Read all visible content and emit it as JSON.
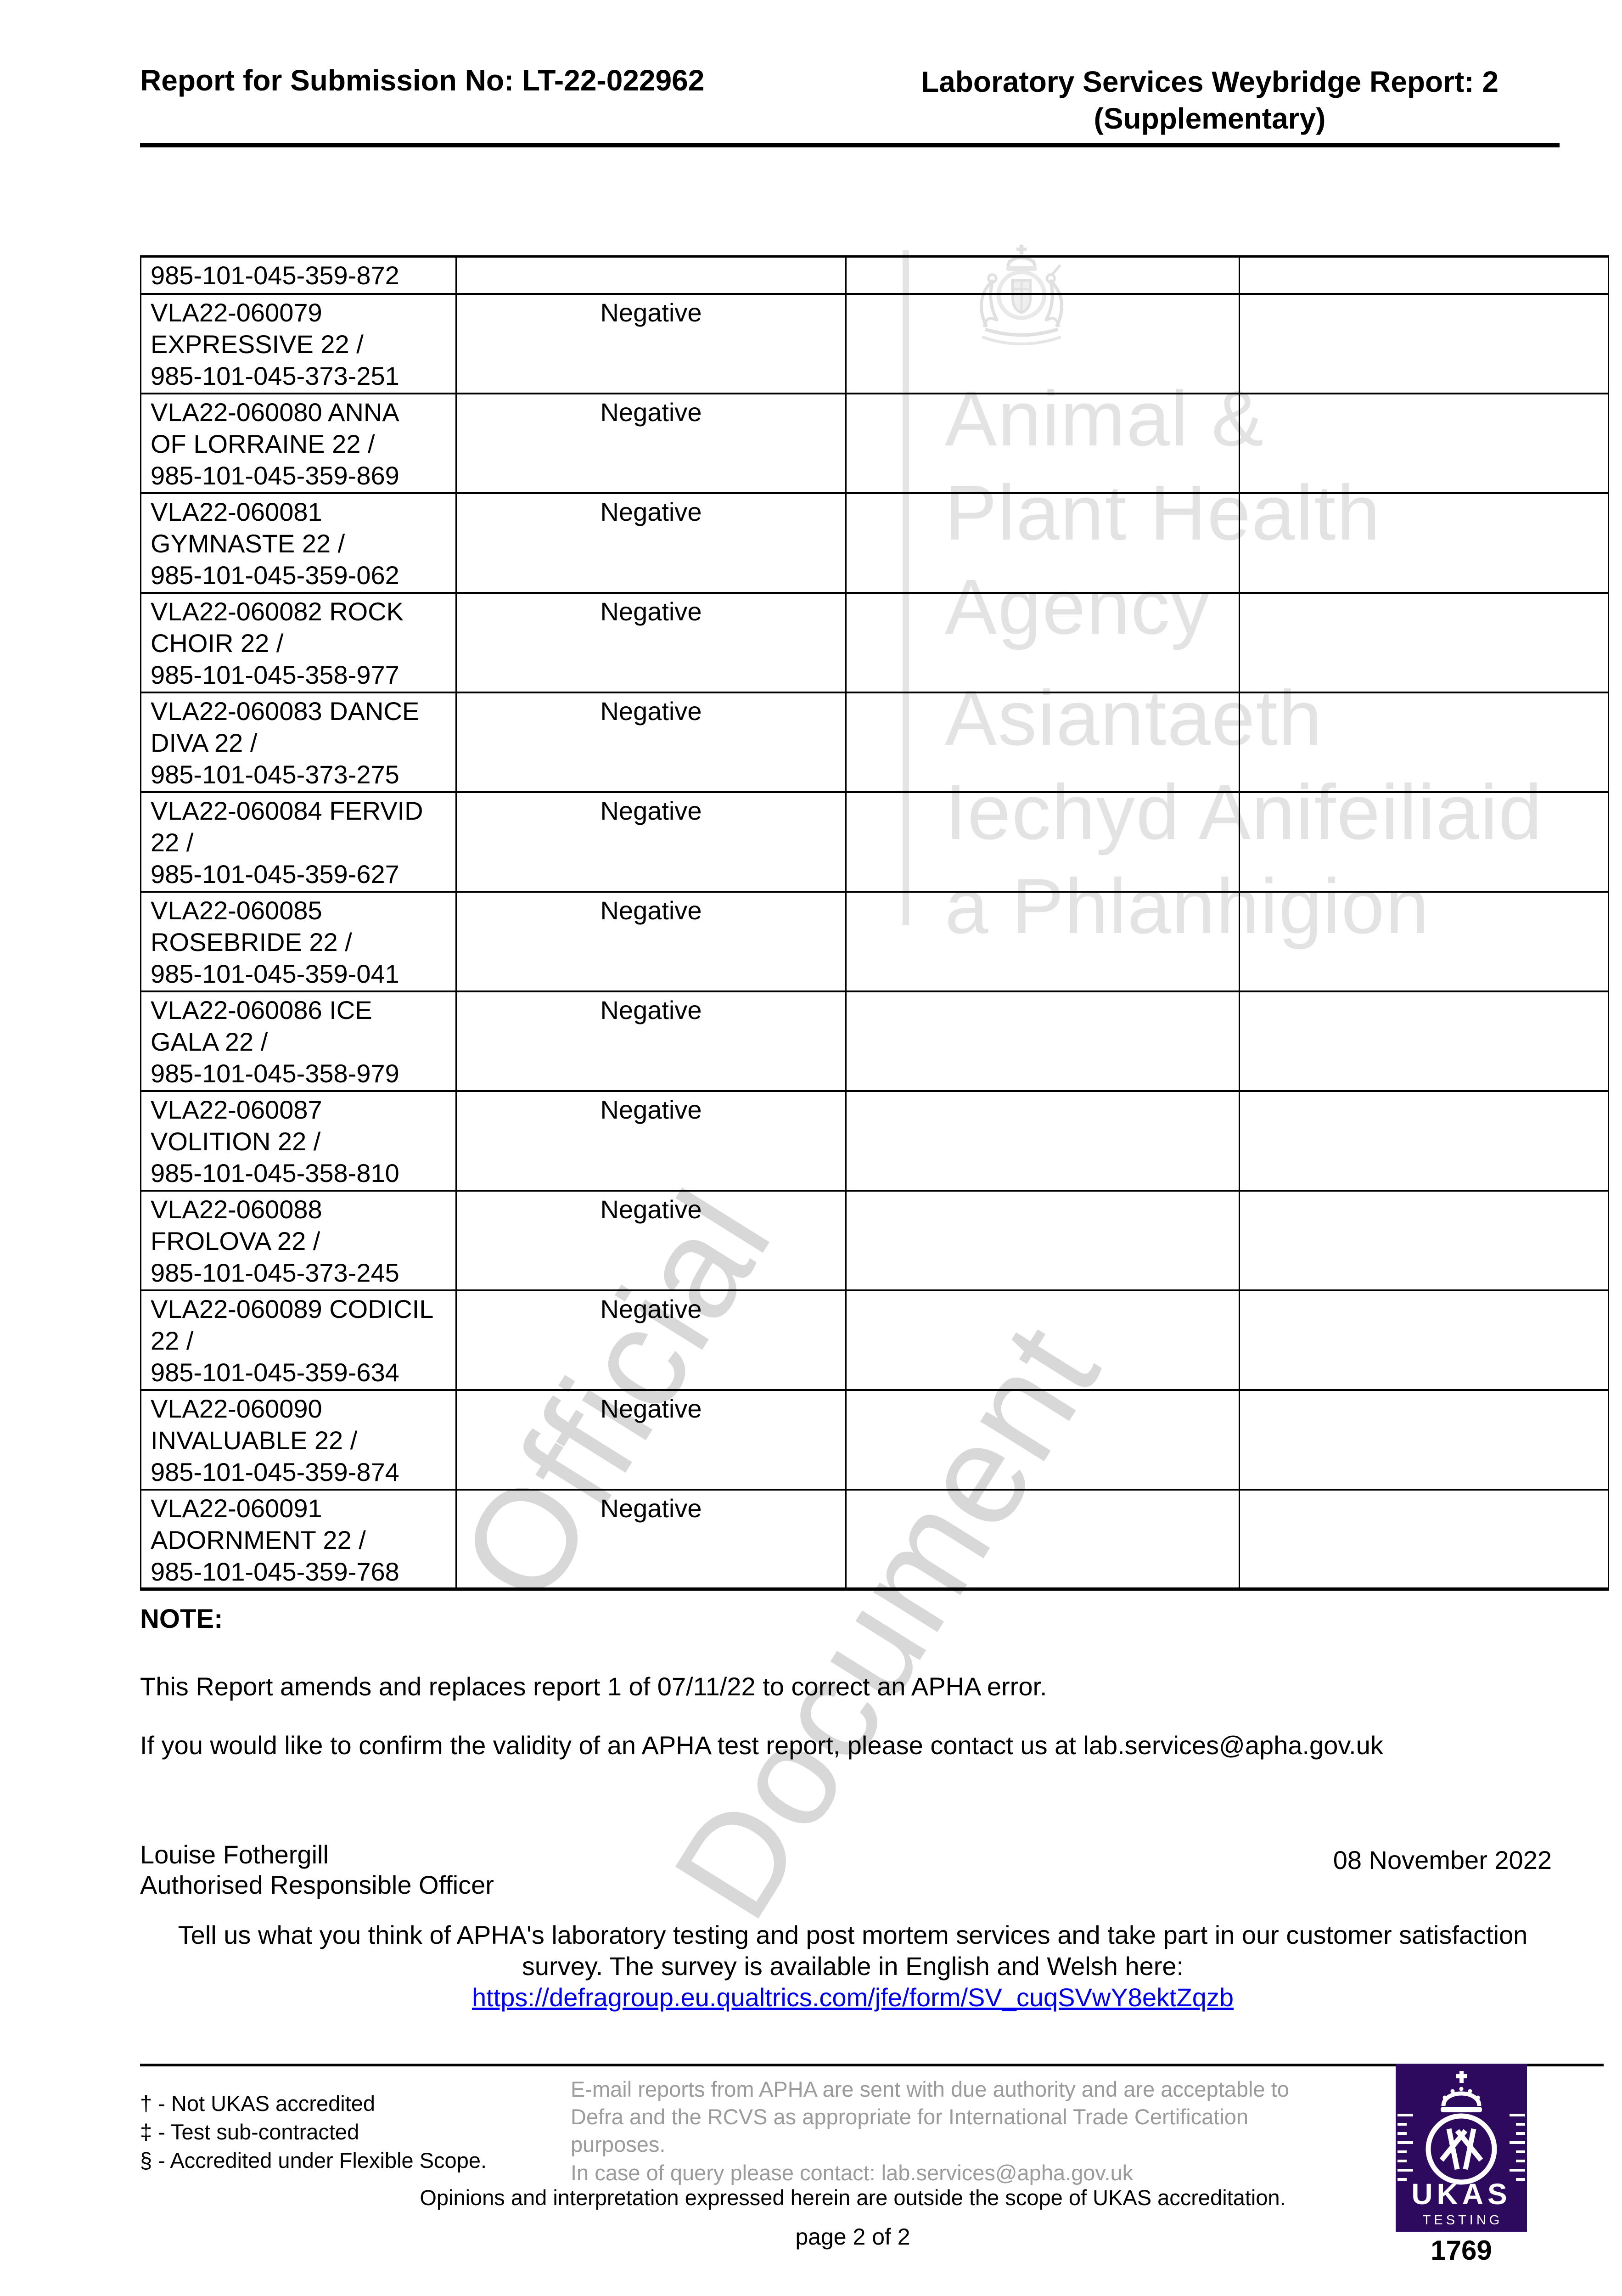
{
  "header": {
    "left_title": "Report for Submission No: LT-22-022962",
    "right_title_line1": "Laboratory Services Weybridge Report: 2",
    "right_title_line2": "(Supplementary)"
  },
  "watermark": {
    "crest": "royal-coat-of-arms",
    "org_en": [
      "Animal &",
      "Plant Health",
      "Agency"
    ],
    "org_cy": [
      "Asiantaeth",
      "Iechyd Anifeiliaid",
      "a Phlanhigion"
    ],
    "diagonal": [
      "Official",
      "Document"
    ]
  },
  "table": {
    "rows": [
      {
        "sample_lines": [
          "985-101-045-359-872"
        ],
        "result": ""
      },
      {
        "sample_lines": [
          "VLA22-060079",
          "EXPRESSIVE 22 /",
          "985-101-045-373-251"
        ],
        "result": "Negative"
      },
      {
        "sample_lines": [
          "VLA22-060080 ANNA",
          "OF LORRAINE 22 /",
          "985-101-045-359-869"
        ],
        "result": "Negative"
      },
      {
        "sample_lines": [
          "VLA22-060081",
          "GYMNASTE 22 /",
          "985-101-045-359-062"
        ],
        "result": "Negative"
      },
      {
        "sample_lines": [
          "VLA22-060082 ROCK",
          "CHOIR 22 /",
          "985-101-045-358-977"
        ],
        "result": "Negative"
      },
      {
        "sample_lines": [
          "VLA22-060083 DANCE",
          "DIVA 22 /",
          "985-101-045-373-275"
        ],
        "result": "Negative"
      },
      {
        "sample_lines": [
          "VLA22-060084 FERVID",
          "22 /",
          "985-101-045-359-627"
        ],
        "result": "Negative"
      },
      {
        "sample_lines": [
          "VLA22-060085",
          "ROSEBRIDE 22 /",
          "985-101-045-359-041"
        ],
        "result": "Negative"
      },
      {
        "sample_lines": [
          "VLA22-060086 ICE",
          "GALA 22 /",
          "985-101-045-358-979"
        ],
        "result": "Negative"
      },
      {
        "sample_lines": [
          "VLA22-060087",
          "VOLITION 22 /",
          "985-101-045-358-810"
        ],
        "result": "Negative"
      },
      {
        "sample_lines": [
          "VLA22-060088",
          "FROLOVA 22 /",
          "985-101-045-373-245"
        ],
        "result": "Negative"
      },
      {
        "sample_lines": [
          "VLA22-060089 CODICIL",
          "22 /",
          "985-101-045-359-634"
        ],
        "result": "Negative"
      },
      {
        "sample_lines": [
          "VLA22-060090",
          "INVALUABLE 22 /",
          "985-101-045-359-874"
        ],
        "result": "Negative"
      },
      {
        "sample_lines": [
          "VLA22-060091",
          "ADORNMENT 22 /",
          "985-101-045-359-768"
        ],
        "result": "Negative"
      }
    ]
  },
  "note": {
    "heading": "NOTE:",
    "paragraph1": "This Report amends and replaces report 1 of 07/11/22 to correct an APHA error.",
    "paragraph2": "If you would like to confirm the validity of an APHA test report, please contact us at lab.services@apha.gov.uk"
  },
  "signature": {
    "name": "Louise Fothergill",
    "role": "Authorised Responsible Officer",
    "date": "08 November 2022"
  },
  "survey": {
    "line1": "Tell us what you think of APHA's laboratory testing and post mortem services and take part in our customer satisfaction",
    "line2": "survey. The survey is available in English and Welsh here:",
    "link": "https://defragroup.eu.qualtrics.com/jfe/form/SV_cuqSVwY8ektZqzb"
  },
  "footer": {
    "footnotes": [
      "† - Not UKAS accredited",
      "‡ - Test sub-contracted",
      "§ - Accredited under Flexible Scope."
    ],
    "email_notice_lines": [
      "E-mail reports from APHA are sent with due authority and are acceptable to",
      "Defra and the RCVS as appropriate for International Trade Certification",
      "purposes."
    ],
    "query_line": "In case of query please contact: lab.services@apha.gov.uk",
    "opinions_line": "Opinions and interpretation expressed herein are outside the scope of UKAS accreditation.",
    "page_label": "page 2 of 2"
  },
  "ukas": {
    "acronym": "UKAS",
    "label": "TESTING",
    "number": "1769",
    "purple": "#2e0a5e"
  },
  "colors": {
    "link_blue": "#0000ee",
    "footer_gray": "#9b9b9b",
    "watermark_light": "#e3e3e3",
    "watermark_mid": "#d8d8d8"
  }
}
